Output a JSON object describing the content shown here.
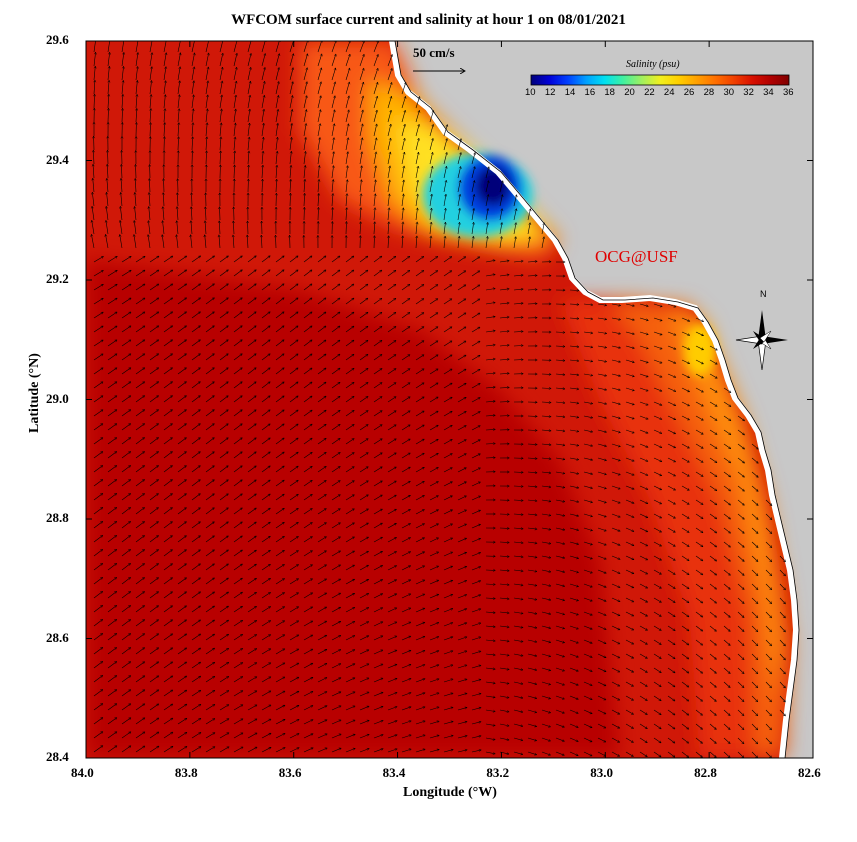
{
  "title": "WFCOM surface current and salinity at hour 1 on 08/01/2021",
  "axes": {
    "xlabel": "Longitude (°W)",
    "ylabel": "Latitude (°N)",
    "xticks": [
      "84.0",
      "83.8",
      "83.6",
      "83.4",
      "83.2",
      "83.0",
      "82.8",
      "82.6"
    ],
    "yticks": [
      "29.6",
      "29.4",
      "29.2",
      "29.0",
      "28.8",
      "28.6",
      "28.4"
    ]
  },
  "colorbar": {
    "title": "Salinity (psu)",
    "ticks": [
      "10",
      "12",
      "14",
      "16",
      "18",
      "20",
      "22",
      "24",
      "26",
      "28",
      "30",
      "32",
      "34",
      "36"
    ],
    "colors": [
      "#00007a",
      "#0000d8",
      "#0040ff",
      "#00a0ff",
      "#00e0f0",
      "#40f0a0",
      "#a0f060",
      "#f0f020",
      "#ffd000",
      "#ffa000",
      "#ff7000",
      "#f04000",
      "#d81000",
      "#b00000",
      "#800000"
    ]
  },
  "scale_arrow": {
    "label": "50 cm/s"
  },
  "credit": "OCG@USF",
  "north_label": "N",
  "colors": {
    "land": "#c8c8c8",
    "sea_deep": "#c40a00",
    "sea_mid": "#e62808",
    "plume_low": "#00007a"
  }
}
